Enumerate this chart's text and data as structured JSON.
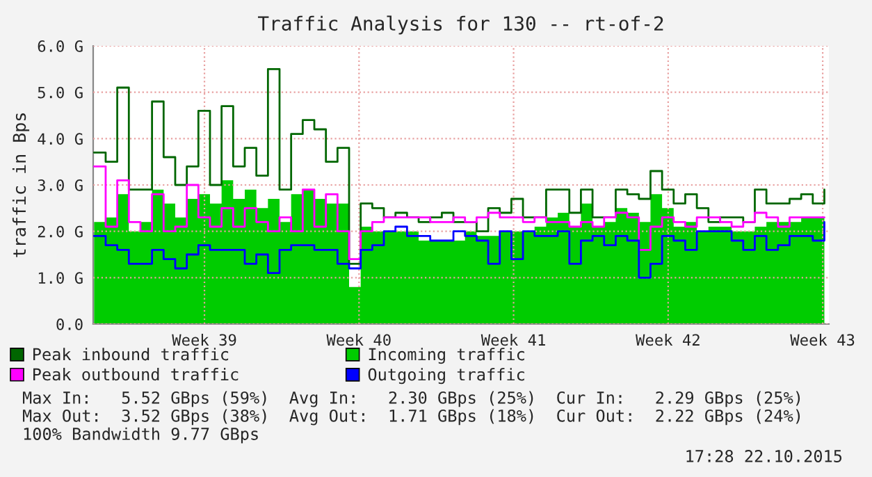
{
  "chart_data": {
    "type": "step",
    "title": "Traffic Analysis for 130 -- rt-of-2",
    "ylabel": "traffic in Bps",
    "x": [
      "2015-09-16T00:00",
      "2015-09-16T12:36",
      "2015-09-17T01:12",
      "2015-09-17T13:48",
      "2015-09-18T02:24",
      "2015-09-18T15:00",
      "2015-09-19T03:36",
      "2015-09-19T16:12",
      "2015-09-20T04:48",
      "2015-09-20T17:24",
      "2015-09-21T06:00",
      "2015-09-21T18:36",
      "2015-09-22T07:12",
      "2015-09-22T19:48",
      "2015-09-23T08:24",
      "2015-09-23T21:00",
      "2015-09-24T09:36",
      "2015-09-24T22:12",
      "2015-09-25T10:48",
      "2015-09-25T23:24",
      "2015-09-26T12:00",
      "2015-09-27T00:36",
      "2015-09-27T13:12",
      "2015-09-28T01:48",
      "2015-09-28T14:24",
      "2015-09-29T03:00",
      "2015-09-29T15:36",
      "2015-09-30T04:12",
      "2015-09-30T16:48",
      "2015-10-01T05:24",
      "2015-10-01T18:00",
      "2015-10-02T06:36",
      "2015-10-02T19:12",
      "2015-10-03T07:48",
      "2015-10-03T20:24",
      "2015-10-04T09:00",
      "2015-10-04T21:36",
      "2015-10-05T10:12",
      "2015-10-05T22:48",
      "2015-10-06T11:24",
      "2015-10-07T00:00",
      "2015-10-07T12:36",
      "2015-10-08T01:12",
      "2015-10-08T13:48",
      "2015-10-09T02:24",
      "2015-10-09T15:00",
      "2015-10-10T03:36",
      "2015-10-10T16:12",
      "2015-10-11T04:48",
      "2015-10-11T17:24",
      "2015-10-12T06:00",
      "2015-10-12T18:36",
      "2015-10-13T07:12",
      "2015-10-13T19:48",
      "2015-10-14T08:24",
      "2015-10-14T21:00",
      "2015-10-15T09:36",
      "2015-10-15T22:12",
      "2015-10-16T10:48",
      "2015-10-16T23:24",
      "2015-10-17T12:00",
      "2015-10-18T00:36",
      "2015-10-18T13:12",
      "2015-10-19T01:48"
    ],
    "series": [
      {
        "name": "Peak inbound traffic",
        "color": "#006600",
        "values": [
          3.7,
          3.5,
          5.1,
          2.9,
          2.9,
          4.8,
          3.6,
          3.0,
          3.4,
          4.6,
          3.0,
          4.7,
          3.4,
          3.8,
          3.2,
          5.5,
          2.9,
          4.1,
          4.4,
          4.2,
          3.5,
          3.8,
          1.3,
          2.6,
          2.5,
          2.3,
          2.4,
          2.3,
          2.2,
          2.3,
          2.4,
          2.2,
          2.2,
          2.0,
          2.5,
          2.4,
          2.7,
          2.3,
          2.3,
          2.9,
          2.9,
          2.4,
          2.9,
          2.3,
          2.3,
          2.9,
          2.8,
          2.7,
          3.3,
          2.9,
          2.6,
          2.8,
          2.5,
          2.2,
          2.3,
          2.3,
          2.2,
          2.9,
          2.6,
          2.6,
          2.7,
          2.8,
          2.6,
          2.9
        ]
      },
      {
        "name": "Incoming traffic",
        "color": "#00cc00",
        "type": "area",
        "values": [
          2.2,
          2.3,
          2.8,
          2.0,
          2.2,
          2.9,
          2.6,
          2.3,
          2.7,
          2.8,
          2.6,
          3.1,
          2.7,
          2.9,
          2.5,
          2.7,
          2.2,
          2.8,
          2.9,
          2.7,
          2.6,
          2.6,
          0.8,
          2.1,
          2.0,
          2.0,
          2.0,
          2.0,
          1.8,
          1.8,
          1.8,
          1.8,
          2.0,
          1.9,
          1.9,
          2.0,
          2.0,
          2.0,
          2.1,
          2.3,
          2.4,
          2.1,
          2.6,
          2.1,
          2.2,
          2.5,
          2.4,
          2.2,
          2.8,
          2.5,
          2.1,
          2.2,
          2.0,
          2.1,
          2.1,
          2.0,
          2.0,
          2.1,
          2.2,
          2.2,
          2.2,
          2.3,
          2.3,
          2.3
        ]
      },
      {
        "name": "Peak outbound traffic",
        "color": "#ff00ff",
        "values": [
          3.4,
          2.1,
          3.1,
          2.2,
          2.0,
          2.8,
          2.0,
          2.1,
          3.0,
          2.3,
          2.1,
          2.5,
          2.1,
          2.5,
          2.2,
          2.0,
          2.3,
          2.0,
          2.9,
          2.1,
          2.8,
          2.0,
          1.4,
          2.0,
          2.2,
          2.3,
          2.3,
          2.3,
          2.3,
          2.2,
          2.2,
          2.3,
          2.2,
          2.3,
          2.4,
          2.3,
          2.3,
          2.2,
          2.3,
          2.2,
          2.2,
          2.1,
          2.2,
          2.1,
          2.3,
          2.4,
          2.3,
          1.6,
          2.1,
          2.3,
          2.2,
          2.1,
          2.3,
          2.3,
          2.2,
          2.1,
          2.2,
          2.4,
          2.3,
          2.1,
          2.3,
          2.3,
          2.3,
          2.3
        ]
      },
      {
        "name": "Outgoing traffic",
        "color": "#0000ff",
        "values": [
          1.9,
          1.7,
          1.6,
          1.3,
          1.3,
          1.6,
          1.4,
          1.2,
          1.5,
          1.7,
          1.6,
          1.6,
          1.6,
          1.3,
          1.5,
          1.1,
          1.6,
          1.7,
          1.7,
          1.6,
          1.6,
          1.3,
          1.2,
          1.6,
          1.7,
          2.0,
          2.1,
          1.9,
          1.9,
          1.8,
          1.8,
          2.0,
          1.9,
          1.8,
          1.3,
          2.0,
          1.4,
          2.0,
          1.9,
          1.9,
          2.0,
          1.3,
          1.8,
          1.9,
          1.7,
          1.9,
          1.8,
          1.0,
          1.3,
          1.9,
          1.8,
          1.6,
          2.0,
          2.0,
          2.0,
          1.8,
          1.6,
          1.9,
          1.6,
          1.7,
          1.9,
          1.9,
          1.8,
          2.2
        ]
      }
    ],
    "xlim": [
      "2015-09-15T23:02",
      "2015-10-19T06:43"
    ],
    "xticks": [
      {
        "value": "2015-09-21",
        "label": "Week 39"
      },
      {
        "value": "2015-09-28",
        "label": "Week 40"
      },
      {
        "value": "2015-10-05",
        "label": "Week 41"
      },
      {
        "value": "2015-10-12",
        "label": "Week 42"
      },
      {
        "value": "2015-10-19",
        "label": "Week 43"
      }
    ],
    "ylim": [
      0,
      6.0
    ],
    "yticks": [
      {
        "value": 0,
        "label": "0.0"
      },
      {
        "value": 1,
        "label": "1.0 G"
      },
      {
        "value": 2,
        "label": "2.0 G"
      },
      {
        "value": 3,
        "label": "3.0 G"
      },
      {
        "value": 4,
        "label": "4.0 G"
      },
      {
        "value": 5,
        "label": "5.0 G"
      },
      {
        "value": 6,
        "label": "6.0 G"
      }
    ],
    "grid": true,
    "legend": "bottom",
    "annotations": [
      "Max In:   5.52 GBps (59%)  Avg In:   2.30 GBps (25%)  Cur In:   2.29 GBps (25%)",
      "Max Out:  3.52 GBps (38%)  Avg Out:  1.71 GBps (18%)  Cur Out:  2.22 GBps (24%)",
      "100% Bandwidth 9.77 GBps",
      "17:28 22.10.2015"
    ]
  }
}
